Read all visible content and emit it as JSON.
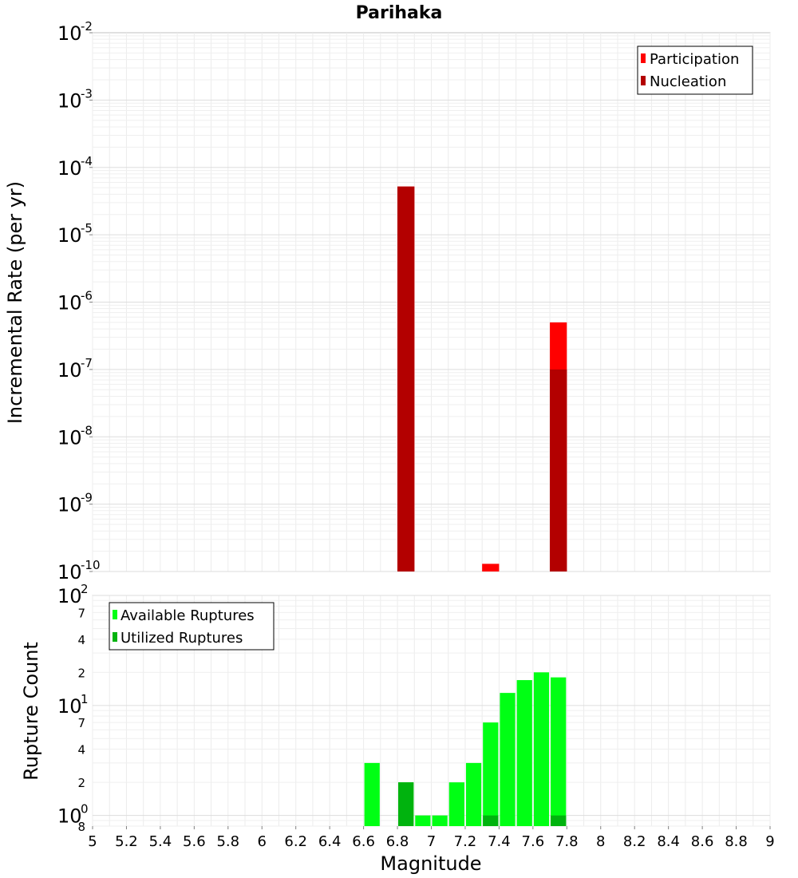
{
  "chart_data": [
    {
      "type": "bar",
      "title": "Parihaka",
      "xlabel": "",
      "ylabel": "Incremental Rate (per yr)",
      "yscale": "log",
      "ylim": [
        1e-10,
        0.01
      ],
      "xlim": [
        5,
        9
      ],
      "y_ticks": [
        {
          "base": "10",
          "exp": "-2"
        },
        {
          "base": "10",
          "exp": "-3"
        },
        {
          "base": "10",
          "exp": "-4"
        },
        {
          "base": "10",
          "exp": "-5"
        },
        {
          "base": "10",
          "exp": "-6"
        },
        {
          "base": "10",
          "exp": "-7"
        },
        {
          "base": "10",
          "exp": "-8"
        },
        {
          "base": "10",
          "exp": "-9"
        },
        {
          "base": "10",
          "exp": "-10"
        }
      ],
      "grid": true,
      "legend": "top-right",
      "series": [
        {
          "name": "Participation",
          "color": "#ff0000",
          "x": [
            6.85,
            7.35,
            7.75
          ],
          "values": [
            5.2e-05,
            1.3e-10,
            5e-07
          ]
        },
        {
          "name": "Nucleation",
          "color": "#b30000",
          "x": [
            6.85,
            7.75
          ],
          "values": [
            5.2e-05,
            1e-07
          ]
        }
      ]
    },
    {
      "type": "bar",
      "title": "",
      "xlabel": "Magnitude",
      "ylabel": "Rupture Count",
      "yscale": "log",
      "ylim": [
        0.8,
        100
      ],
      "xlim": [
        5,
        9
      ],
      "x_ticks": [
        "5",
        "5.2",
        "5.4",
        "5.6",
        "5.8",
        "6",
        "6.2",
        "6.4",
        "6.6",
        "6.8",
        "7",
        "7.2",
        "7.4",
        "7.6",
        "7.8",
        "8",
        "8.2",
        "8.4",
        "8.6",
        "8.8",
        "9"
      ],
      "y_major_ticks": [
        {
          "base": "10",
          "exp": "2"
        },
        {
          "base": "10",
          "exp": "1"
        },
        {
          "base": "10",
          "exp": "0"
        }
      ],
      "y_minor_ticks": [
        "7",
        "4",
        "2",
        "7",
        "4",
        "2",
        "8"
      ],
      "grid": true,
      "legend": "top-left",
      "series": [
        {
          "name": "Available Ruptures",
          "color": "#00ff14",
          "x": [
            6.65,
            6.85,
            6.95,
            7.05,
            7.15,
            7.25,
            7.35,
            7.45,
            7.55,
            7.65,
            7.75
          ],
          "values": [
            3,
            2,
            1,
            1,
            2,
            3,
            7,
            13,
            17,
            20,
            18
          ]
        },
        {
          "name": "Utilized Ruptures",
          "color": "#00b30e",
          "x": [
            6.85,
            7.35,
            7.75
          ],
          "values": [
            2,
            1,
            1
          ]
        }
      ]
    }
  ]
}
